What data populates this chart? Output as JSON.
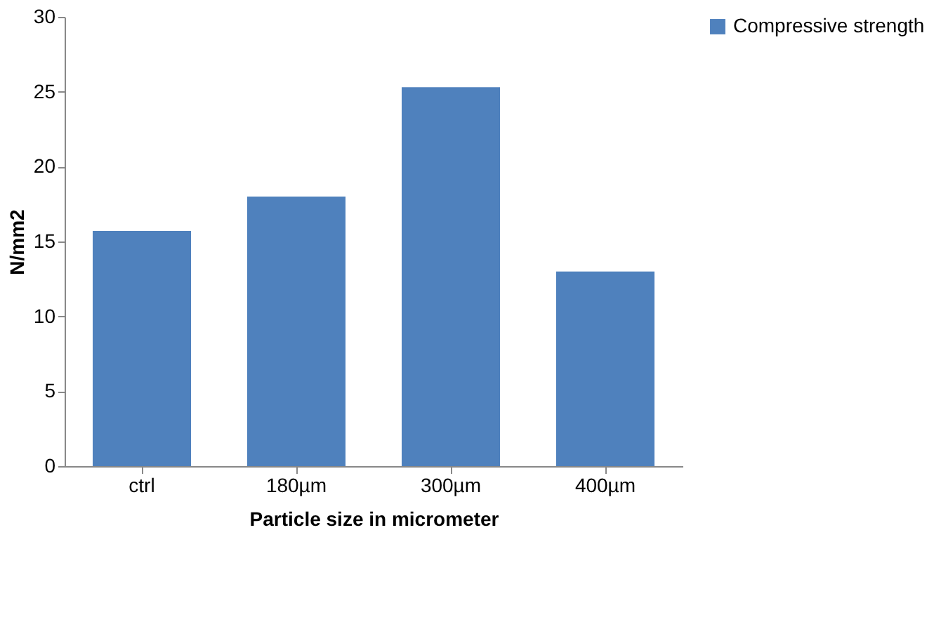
{
  "chart_data": {
    "type": "bar",
    "categories": [
      "ctrl",
      "180µm",
      "300µm",
      "400µm"
    ],
    "series": [
      {
        "name": "Compressive strength",
        "color": "#4f81bd",
        "values": [
          15.7,
          18.0,
          25.3,
          13.0
        ]
      }
    ],
    "xlabel": "Particle size in micrometer",
    "ylabel": "N/mm2",
    "ylim": [
      0,
      30
    ],
    "yticks": [
      0,
      5,
      10,
      15,
      20,
      25,
      30
    ],
    "grid": false,
    "legend": "right"
  }
}
